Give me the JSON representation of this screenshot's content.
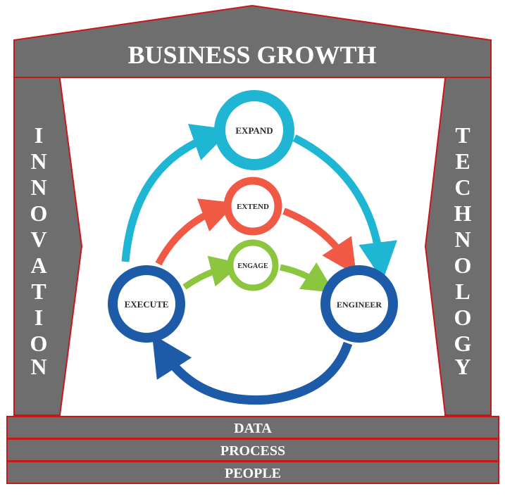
{
  "roof": {
    "title": "BUSINESS GROWTH"
  },
  "pillars": {
    "left": {
      "letters": [
        "I",
        "N",
        "N",
        "O",
        "V",
        "A",
        "T",
        "I",
        "O",
        "N"
      ]
    },
    "right": {
      "letters": [
        "T",
        "E",
        "C",
        "H",
        "N",
        "O",
        "L",
        "O",
        "G",
        "Y"
      ]
    }
  },
  "foundation": {
    "layers": [
      "DATA",
      "PROCESS",
      "PEOPLE"
    ]
  },
  "cycle": {
    "nodes": {
      "expand": "EXPAND",
      "extend": "EXTEND",
      "engage": "ENGAGE",
      "execute": "EXECUTE",
      "engineer": "ENGINEER"
    }
  },
  "colors": {
    "structure_gray": "#6e6e6e",
    "structure_border": "#c8161d",
    "expand_blue": "#1fb6d4",
    "extend_red": "#f05a45",
    "engage_green": "#8cc63f",
    "execute_navy": "#1d5aa8",
    "label_white": "#ffffff"
  }
}
